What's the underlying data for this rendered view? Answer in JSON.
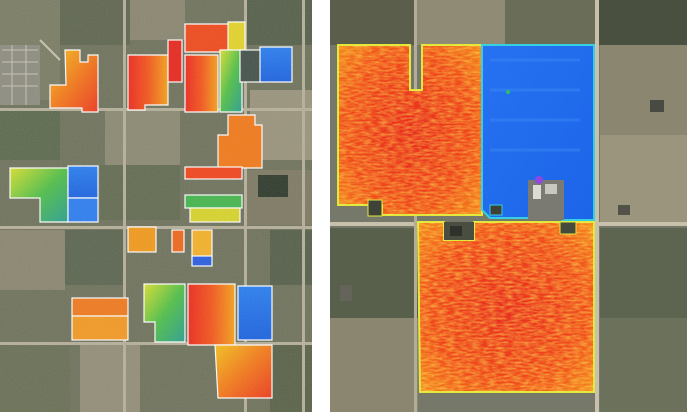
{
  "panels": [
    {
      "id": "regional-overview",
      "content": "aerial-farmland-ndvi-overlay"
    },
    {
      "id": "field-closeup",
      "content": "aerial-farmland-ndvi-overlay"
    }
  ],
  "palette": {
    "low": "#1e6cf0",
    "mid_low": "#3fb24a",
    "mid": "#e6e22e",
    "mid_high": "#f59a1c",
    "high": "#ee2a1e",
    "very_high": "#e0144a",
    "field_outline": "#ffffff",
    "soil_dark": "#5a5a48",
    "crop_green": "#6e7a52",
    "stubble_tan": "#a39a80"
  }
}
